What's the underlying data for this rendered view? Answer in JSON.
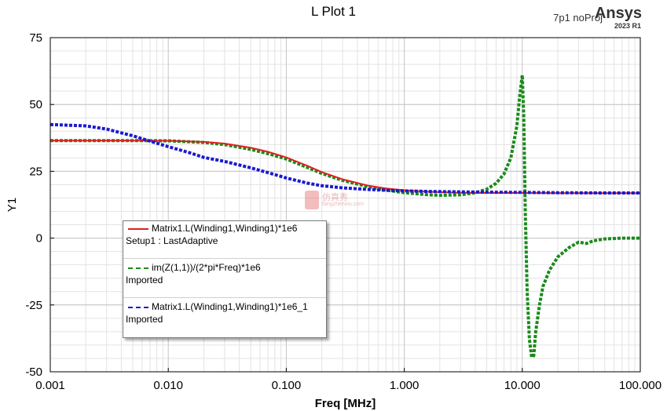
{
  "header": {
    "title": "L Plot 1",
    "design": "7p1 noProj",
    "brand": "Ansys",
    "brand_version": "2023 R1"
  },
  "watermark": {
    "text": "仿真秀",
    "sub": "fangzhenxiu.com"
  },
  "colors": {
    "series1": "#e02020",
    "series2": "#1a8a1a",
    "series3": "#1a1ad0"
  },
  "legend": {
    "entries": [
      {
        "name": "Matrix1.L(Winding1,Winding1)*1e6",
        "sub": "Setup1 : LastAdaptive",
        "color": "#e02020",
        "style": "solid"
      },
      {
        "name": "im(Z(1,1))/(2*pi*Freq)*1e6",
        "sub": "Imported",
        "color": "#1a8a1a",
        "style": "dashed"
      },
      {
        "name": "Matrix1.L(Winding1,Winding1)*1e6_1",
        "sub": "Imported",
        "color": "#1a1ad0",
        "style": "dashed"
      }
    ]
  },
  "chart_data": {
    "type": "line",
    "title": "L Plot 1",
    "xlabel": "Freq [MHz]",
    "ylabel": "Y1",
    "x_scale": "log",
    "xlim": [
      0.001,
      100
    ],
    "ylim": [
      -50,
      75
    ],
    "x_ticks": [
      0.001,
      0.01,
      0.1,
      1,
      10,
      100
    ],
    "x_tick_labels": [
      "0.001",
      "0.010",
      "0.100",
      "1.000",
      "10.000",
      "100.000"
    ],
    "y_ticks": [
      -50,
      -25,
      0,
      25,
      50,
      75
    ],
    "y_tick_labels": [
      "-50",
      "-25",
      "0",
      "25",
      "50",
      "75"
    ],
    "grid": true,
    "legend_position": "middle-left",
    "series": [
      {
        "name": "Matrix1.L(Winding1,Winding1)*1e6",
        "style": "solid",
        "x": [
          0.001,
          0.002,
          0.005,
          0.01,
          0.02,
          0.03,
          0.05,
          0.07,
          0.1,
          0.15,
          0.2,
          0.3,
          0.5,
          0.7,
          1,
          1.5,
          2,
          3,
          5,
          10,
          20,
          50,
          100
        ],
        "y": [
          36.5,
          36.5,
          36.5,
          36.4,
          36.0,
          35.4,
          33.8,
          32.3,
          30.2,
          27.1,
          24.7,
          22.0,
          19.6,
          18.6,
          17.9,
          17.4,
          17.2,
          17.0,
          16.9,
          16.9,
          16.8,
          16.8,
          16.8
        ]
      },
      {
        "name": "im(Z(1,1))/(2*pi*Freq)*1e6",
        "style": "dashed",
        "x": [
          0.001,
          0.002,
          0.005,
          0.01,
          0.02,
          0.03,
          0.05,
          0.07,
          0.1,
          0.15,
          0.2,
          0.3,
          0.5,
          0.7,
          1,
          1.5,
          2,
          3,
          4,
          5,
          6,
          7,
          8,
          9,
          9.5,
          10,
          10.3,
          10.6,
          11,
          11.5,
          12,
          12.5,
          13,
          14,
          15,
          17,
          20,
          25,
          30,
          35,
          40,
          50,
          70,
          100
        ],
        "y": [
          36.5,
          36.5,
          36.5,
          36.4,
          35.8,
          35.0,
          33.2,
          31.6,
          29.6,
          26.5,
          24.2,
          21.6,
          19.2,
          18.0,
          17.0,
          16.3,
          16.0,
          16.2,
          17.0,
          18.3,
          20.5,
          24.0,
          30.0,
          42.0,
          53.0,
          61.0,
          45.0,
          10.0,
          -20.0,
          -38.0,
          -44.5,
          -44.0,
          -35.0,
          -25.0,
          -18.0,
          -12.0,
          -7.0,
          -3.5,
          -1.5,
          -2.0,
          -1.0,
          -0.3,
          0.0,
          0.0
        ]
      },
      {
        "name": "Matrix1.L(Winding1,Winding1)*1e6_1",
        "style": "dashed",
        "x": [
          0.001,
          0.002,
          0.003,
          0.005,
          0.007,
          0.01,
          0.015,
          0.02,
          0.03,
          0.05,
          0.07,
          0.1,
          0.15,
          0.2,
          0.3,
          0.5,
          0.7,
          1,
          1.5,
          2,
          3,
          5,
          10,
          20,
          50,
          100
        ],
        "y": [
          42.5,
          42.0,
          40.8,
          38.3,
          36.3,
          34.2,
          32.0,
          30.2,
          28.7,
          26.3,
          24.5,
          22.5,
          20.6,
          19.6,
          18.8,
          18.2,
          17.9,
          17.7,
          17.5,
          17.4,
          17.3,
          17.2,
          17.1,
          17.0,
          16.9,
          16.9
        ]
      }
    ]
  }
}
